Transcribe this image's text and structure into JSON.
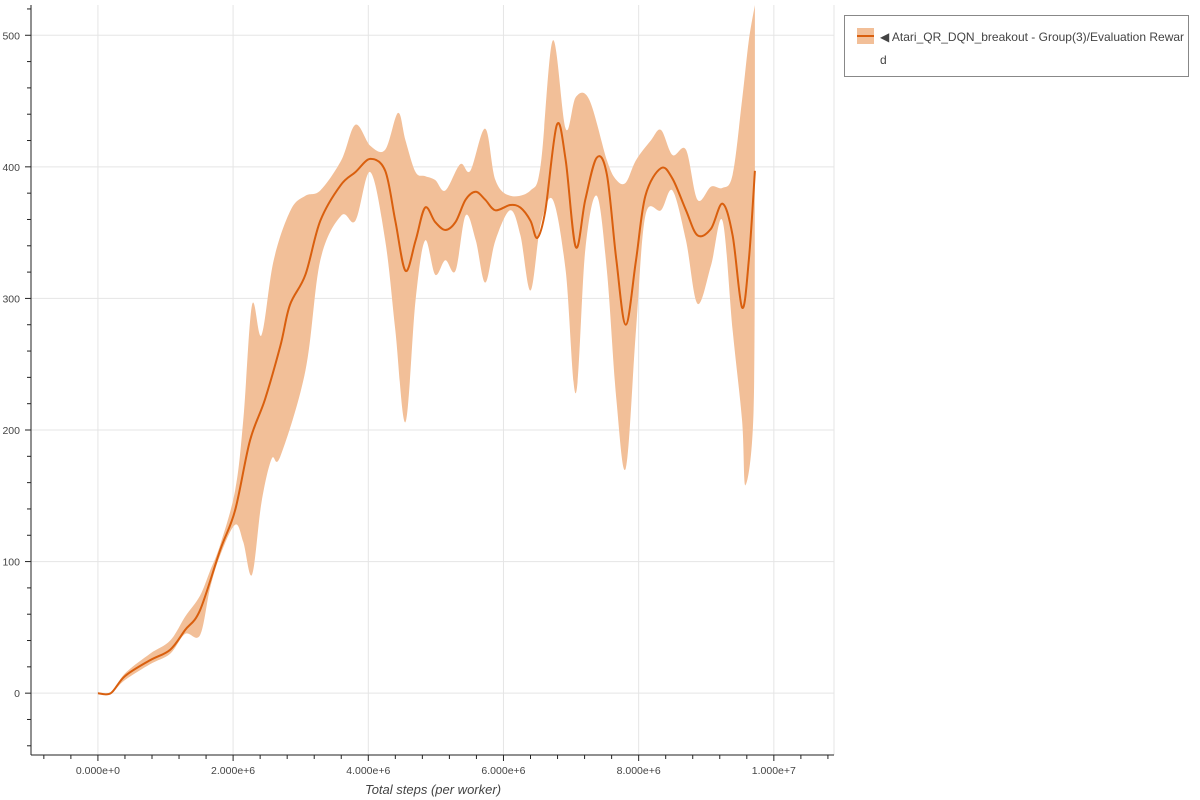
{
  "chart_data": {
    "type": "line",
    "xlabel": "Total steps (per worker)",
    "ylabel": "",
    "xlim": [
      -990000,
      10890000
    ],
    "ylim": [
      -47,
      523
    ],
    "x_ticks": [
      0,
      2000000,
      4000000,
      6000000,
      8000000,
      10000000
    ],
    "x_tick_labels": [
      "0.000e+0",
      "2.000e+6",
      "4.000e+6",
      "6.000e+6",
      "8.000e+6",
      "1.000e+7"
    ],
    "y_ticks": [
      0,
      100,
      200,
      300,
      400,
      500
    ],
    "y_tick_labels": [
      "0",
      "100",
      "200",
      "300",
      "400",
      "500"
    ],
    "grid": true,
    "legend_position": "outside-right-top",
    "colors": {
      "line": "#d95f0e",
      "band": "#f2bf98"
    },
    "series": [
      {
        "name": "◀ Atari_QR_DQN_breakout - Group(3)/Evaluation Reward",
        "mean": [
          [
            0,
            0
          ],
          [
            190000,
            0
          ],
          [
            400000,
            13
          ],
          [
            770000,
            25
          ],
          [
            1070000,
            33
          ],
          [
            1290000,
            48
          ],
          [
            1510000,
            63
          ],
          [
            1810000,
            109
          ],
          [
            2030000,
            139
          ],
          [
            2250000,
            192
          ],
          [
            2470000,
            223
          ],
          [
            2700000,
            264
          ],
          [
            2840000,
            295
          ],
          [
            3070000,
            318
          ],
          [
            3290000,
            359
          ],
          [
            3590000,
            386
          ],
          [
            3810000,
            396
          ],
          [
            4030000,
            406
          ],
          [
            4250000,
            397
          ],
          [
            4400000,
            359
          ],
          [
            4550000,
            321
          ],
          [
            4700000,
            344
          ],
          [
            4840000,
            369
          ],
          [
            4990000,
            358
          ],
          [
            5140000,
            352
          ],
          [
            5290000,
            358
          ],
          [
            5440000,
            375
          ],
          [
            5590000,
            381
          ],
          [
            5730000,
            375
          ],
          [
            5880000,
            367
          ],
          [
            6100000,
            371
          ],
          [
            6250000,
            369
          ],
          [
            6400000,
            359
          ],
          [
            6500000,
            346
          ],
          [
            6620000,
            367
          ],
          [
            6790000,
            432
          ],
          [
            6920000,
            405
          ],
          [
            7070000,
            339
          ],
          [
            7210000,
            375
          ],
          [
            7380000,
            407
          ],
          [
            7530000,
            394
          ],
          [
            7670000,
            329
          ],
          [
            7810000,
            280
          ],
          [
            7960000,
            329
          ],
          [
            8100000,
            378
          ],
          [
            8330000,
            399
          ],
          [
            8500000,
            391
          ],
          [
            8700000,
            367
          ],
          [
            8870000,
            348
          ],
          [
            9070000,
            353
          ],
          [
            9240000,
            372
          ],
          [
            9390000,
            348
          ],
          [
            9530000,
            293
          ],
          [
            9630000,
            329
          ],
          [
            9720000,
            397
          ]
        ],
        "upper": [
          [
            0,
            0
          ],
          [
            190000,
            0
          ],
          [
            400000,
            15
          ],
          [
            770000,
            30
          ],
          [
            1070000,
            40
          ],
          [
            1290000,
            58
          ],
          [
            1510000,
            74
          ],
          [
            1660000,
            93
          ],
          [
            1810000,
            113
          ],
          [
            2030000,
            154
          ],
          [
            2150000,
            207
          ],
          [
            2280000,
            295
          ],
          [
            2420000,
            272
          ],
          [
            2600000,
            329
          ],
          [
            2850000,
            367
          ],
          [
            3070000,
            378
          ],
          [
            3290000,
            382
          ],
          [
            3600000,
            405
          ],
          [
            3810000,
            432
          ],
          [
            4030000,
            416
          ],
          [
            4250000,
            413
          ],
          [
            4440000,
            441
          ],
          [
            4550000,
            420
          ],
          [
            4700000,
            396
          ],
          [
            4840000,
            393
          ],
          [
            4990000,
            390
          ],
          [
            5140000,
            382
          ],
          [
            5360000,
            402
          ],
          [
            5510000,
            397
          ],
          [
            5730000,
            429
          ],
          [
            5880000,
            390
          ],
          [
            6100000,
            378
          ],
          [
            6400000,
            382
          ],
          [
            6550000,
            401
          ],
          [
            6730000,
            496
          ],
          [
            6920000,
            429
          ],
          [
            7070000,
            453
          ],
          [
            7270000,
            451
          ],
          [
            7530000,
            405
          ],
          [
            7670000,
            390
          ],
          [
            7810000,
            388
          ],
          [
            7960000,
            405
          ],
          [
            8180000,
            420
          ],
          [
            8330000,
            428
          ],
          [
            8500000,
            409
          ],
          [
            8700000,
            413
          ],
          [
            8870000,
            375
          ],
          [
            9070000,
            385
          ],
          [
            9240000,
            384
          ],
          [
            9390000,
            394
          ],
          [
            9530000,
            451
          ],
          [
            9630000,
            496
          ],
          [
            9720000,
            523
          ]
        ],
        "lower": [
          [
            0,
            0
          ],
          [
            190000,
            0
          ],
          [
            400000,
            10
          ],
          [
            770000,
            22
          ],
          [
            1070000,
            30
          ],
          [
            1290000,
            45
          ],
          [
            1510000,
            44
          ],
          [
            1660000,
            80
          ],
          [
            1810000,
            105
          ],
          [
            2030000,
            128
          ],
          [
            2150000,
            115
          ],
          [
            2280000,
            90
          ],
          [
            2420000,
            145
          ],
          [
            2570000,
            178
          ],
          [
            2700000,
            180
          ],
          [
            3070000,
            245
          ],
          [
            3290000,
            329
          ],
          [
            3600000,
            363
          ],
          [
            3810000,
            359
          ],
          [
            4030000,
            396
          ],
          [
            4250000,
            344
          ],
          [
            4400000,
            276
          ],
          [
            4550000,
            206
          ],
          [
            4700000,
            299
          ],
          [
            4840000,
            344
          ],
          [
            4990000,
            318
          ],
          [
            5140000,
            329
          ],
          [
            5290000,
            321
          ],
          [
            5440000,
            363
          ],
          [
            5590000,
            344
          ],
          [
            5730000,
            312
          ],
          [
            5880000,
            344
          ],
          [
            6100000,
            367
          ],
          [
            6250000,
            348
          ],
          [
            6400000,
            306
          ],
          [
            6550000,
            356
          ],
          [
            6730000,
            375
          ],
          [
            6920000,
            321
          ],
          [
            7070000,
            228
          ],
          [
            7210000,
            337
          ],
          [
            7380000,
            378
          ],
          [
            7530000,
            321
          ],
          [
            7670000,
            223
          ],
          [
            7810000,
            171
          ],
          [
            7960000,
            276
          ],
          [
            8100000,
            363
          ],
          [
            8330000,
            367
          ],
          [
            8500000,
            382
          ],
          [
            8700000,
            344
          ],
          [
            8870000,
            296
          ],
          [
            9070000,
            325
          ],
          [
            9240000,
            359
          ],
          [
            9390000,
            276
          ],
          [
            9530000,
            207
          ],
          [
            9580000,
            158
          ],
          [
            9700000,
            215
          ],
          [
            9720000,
            397
          ]
        ]
      }
    ]
  }
}
